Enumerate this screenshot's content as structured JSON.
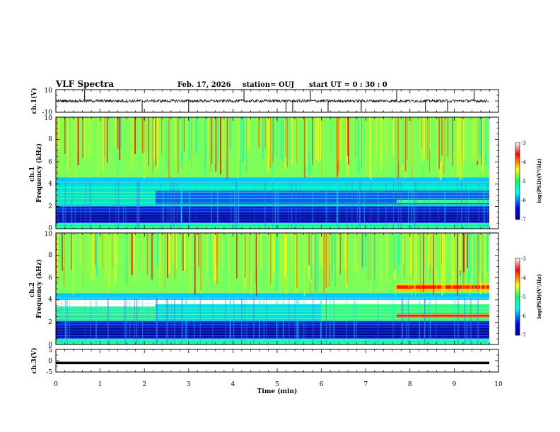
{
  "header": {
    "title": "VLF Spectra",
    "date": "Feb. 17, 2026",
    "station": "station= OUJ",
    "start": "start  UT =   0  : 30 : 0"
  },
  "colors": {
    "spec_low": "#00008f",
    "spec_blue": "#0000ff",
    "spec_cyan": "#00ffff",
    "spec_green": "#00ff66",
    "spec_yellow": "#ffff00",
    "spec_red": "#ff0000",
    "spec_high": "#ffffff"
  },
  "chart_data": [
    {
      "type": "line",
      "id": "ch1-waveform",
      "ylabel": "ch.1(V)",
      "ylim": [
        -10,
        10
      ],
      "yticks": [
        "10",
        "-10"
      ],
      "xlim": [
        0,
        10
      ],
      "baseline": 0,
      "spikes_min": [
        0.65,
        1.95,
        3.0,
        4.25,
        5.2,
        5.35,
        5.75,
        6.15,
        6.9,
        7.7,
        8.35,
        8.85,
        9.45
      ]
    },
    {
      "type": "heatmap",
      "id": "ch1-spectrogram",
      "ylabel": "ch.1\nFrequency  (kHz)",
      "ylim": [
        0,
        10
      ],
      "xlim": [
        0,
        10
      ],
      "yticks": [
        "0",
        "2",
        "4",
        "6",
        "8",
        "10"
      ],
      "colorbar": {
        "label": "log(PSD)(V²/Hz)",
        "range": [
          -7,
          -3
        ],
        "ticks": [
          "-3",
          "-4",
          "-5",
          "-6",
          "-7"
        ]
      }
    },
    {
      "type": "heatmap",
      "id": "ch2-spectrogram",
      "ylabel": "ch.2\nFrequency  (kHz)",
      "ylim": [
        0,
        10
      ],
      "xlim": [
        0,
        10
      ],
      "yticks": [
        "0",
        "2",
        "4",
        "6",
        "8",
        "10"
      ],
      "colorbar": {
        "label": "log(PSD)(V²/Hz)",
        "range": [
          -7,
          -3
        ],
        "ticks": [
          "-3",
          "-4",
          "-5",
          "-6",
          "-7"
        ]
      }
    },
    {
      "type": "line",
      "id": "ch3-waveform",
      "ylabel": "ch.3(V)",
      "ylim": [
        -5,
        5
      ],
      "yticks": [
        "5",
        "0",
        "-5"
      ],
      "xlim": [
        0,
        10
      ],
      "baseline": -1
    }
  ],
  "xaxis": {
    "label": "Time  (min)",
    "ticks": [
      "0",
      "1",
      "2",
      "3",
      "4",
      "5",
      "6",
      "7",
      "8",
      "9",
      "10"
    ]
  }
}
